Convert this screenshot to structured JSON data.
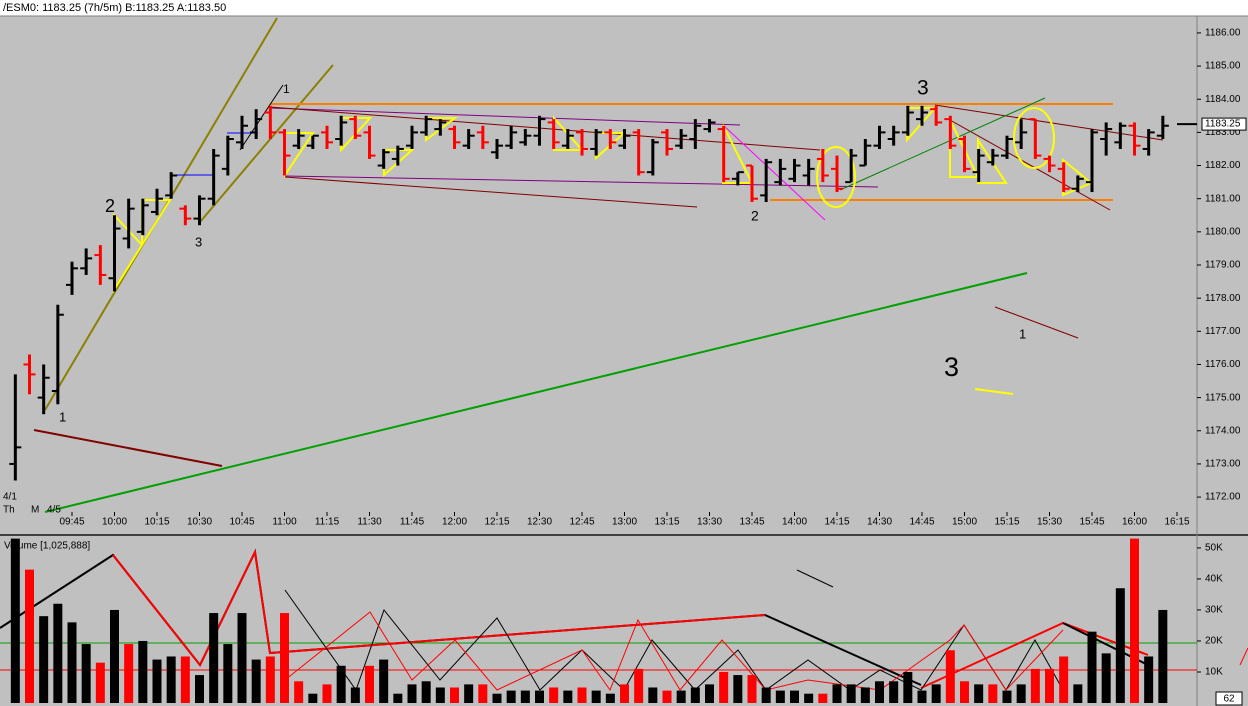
{
  "header": "/ESM0: 1183.25 (7h/5m)  B:1183.25  A:1183.50",
  "chart_data": [
    {
      "type": "ohlc",
      "x": [
        "09:25",
        "09:30",
        "09:35",
        "09:40",
        "09:45",
        "09:50",
        "09:55",
        "10:00",
        "10:05",
        "10:10",
        "10:15",
        "10:20",
        "10:25",
        "10:30",
        "10:35",
        "10:40",
        "10:45",
        "10:50",
        "10:55",
        "11:00",
        "11:05",
        "11:10",
        "11:15",
        "11:20",
        "11:25",
        "11:30",
        "11:35",
        "11:40",
        "11:45",
        "11:50",
        "11:55",
        "12:00",
        "12:05",
        "12:10",
        "12:15",
        "12:20",
        "12:25",
        "12:30",
        "12:35",
        "12:40",
        "12:45",
        "12:50",
        "12:55",
        "13:00",
        "13:05",
        "13:10",
        "13:15",
        "13:20",
        "13:25",
        "13:30",
        "13:35",
        "13:40",
        "13:45",
        "13:50",
        "13:55",
        "14:00",
        "14:05",
        "14:10",
        "14:15",
        "14:20",
        "14:25",
        "14:30",
        "14:35",
        "14:40",
        "14:45",
        "14:50",
        "14:55",
        "15:00",
        "15:05",
        "15:10",
        "15:15",
        "15:20",
        "15:25",
        "15:30",
        "15:35",
        "15:40",
        "15:45",
        "15:50",
        "15:55",
        "16:00",
        "16:05",
        "16:10"
      ],
      "open": [
        1173.0,
        1176.0,
        1175.0,
        1175.2,
        1178.4,
        1178.9,
        1179.3,
        1178.6,
        1179.8,
        1180.0,
        1180.6,
        1181.1,
        1180.7,
        1180.4,
        1181.0,
        1181.9,
        1182.7,
        1183.0,
        1183.6,
        1183.0,
        1182.6,
        1182.6,
        1183.0,
        1182.8,
        1183.4,
        1183.0,
        1182.0,
        1182.2,
        1182.6,
        1183.0,
        1183.1,
        1183.1,
        1182.6,
        1183.0,
        1182.4,
        1182.6,
        1182.7,
        1182.9,
        1183.3,
        1182.6,
        1183.0,
        1182.5,
        1183.0,
        1182.6,
        1183.0,
        1181.8,
        1183.0,
        1182.6,
        1182.8,
        1183.1,
        1183.1,
        1181.6,
        1182.0,
        1181.1,
        1181.5,
        1181.6,
        1181.7,
        1182.2,
        1181.9,
        1181.5,
        1182.0,
        1182.6,
        1182.8,
        1183.0,
        1183.4,
        1183.7,
        1183.4,
        1182.8,
        1181.8,
        1182.1,
        1182.3,
        1182.7,
        1183.4,
        1182.2,
        1181.9,
        1181.3,
        1181.5,
        1182.8,
        1182.7,
        1183.2,
        1182.5,
        1182.9
      ],
      "high": [
        1175.7,
        1176.3,
        1176.0,
        1177.8,
        1179.1,
        1179.5,
        1179.6,
        1180.5,
        1181.0,
        1181.0,
        1181.3,
        1181.8,
        1180.8,
        1181.1,
        1182.5,
        1182.9,
        1183.5,
        1183.7,
        1183.8,
        1183.1,
        1183.1,
        1182.9,
        1183.2,
        1183.5,
        1183.5,
        1183.2,
        1182.5,
        1182.6,
        1183.2,
        1183.5,
        1183.4,
        1183.2,
        1183.1,
        1183.2,
        1182.8,
        1183.2,
        1183.1,
        1183.5,
        1183.4,
        1183.1,
        1183.1,
        1183.1,
        1183.1,
        1183.1,
        1183.1,
        1182.8,
        1183.1,
        1183.1,
        1183.4,
        1183.4,
        1183.2,
        1181.8,
        1182.0,
        1182.2,
        1182.2,
        1182.2,
        1182.2,
        1182.5,
        1182.3,
        1182.5,
        1182.8,
        1183.2,
        1183.2,
        1183.8,
        1183.8,
        1183.8,
        1183.5,
        1182.9,
        1182.5,
        1182.5,
        1182.9,
        1183.4,
        1183.4,
        1182.3,
        1182.1,
        1181.7,
        1183.1,
        1183.3,
        1183.3,
        1183.3,
        1183.1,
        1183.5
      ],
      "low": [
        1172.5,
        1175.1,
        1174.5,
        1174.8,
        1178.1,
        1178.7,
        1178.4,
        1178.2,
        1179.5,
        1179.9,
        1180.5,
        1181.0,
        1180.2,
        1180.2,
        1180.8,
        1181.7,
        1182.5,
        1182.8,
        1182.8,
        1181.7,
        1182.5,
        1182.5,
        1182.5,
        1182.6,
        1182.8,
        1182.2,
        1181.9,
        1182.0,
        1182.5,
        1182.9,
        1182.9,
        1182.5,
        1182.5,
        1182.5,
        1182.2,
        1182.5,
        1182.6,
        1182.6,
        1182.5,
        1182.5,
        1182.3,
        1182.3,
        1182.5,
        1182.5,
        1181.7,
        1181.7,
        1182.3,
        1182.5,
        1182.5,
        1183.0,
        1181.5,
        1181.4,
        1180.9,
        1180.9,
        1181.4,
        1181.5,
        1181.4,
        1181.5,
        1181.2,
        1181.5,
        1182.0,
        1182.5,
        1182.6,
        1182.9,
        1183.2,
        1183.2,
        1182.5,
        1181.8,
        1181.5,
        1182.0,
        1182.2,
        1182.5,
        1182.2,
        1181.8,
        1181.2,
        1181.2,
        1181.2,
        1182.3,
        1182.5,
        1182.3,
        1182.3,
        1182.8
      ],
      "close": [
        1173.5,
        1175.7,
        1175.6,
        1177.5,
        1178.9,
        1179.2,
        1178.7,
        1180.1,
        1180.7,
        1180.8,
        1181.0,
        1181.7,
        1180.4,
        1181.0,
        1182.3,
        1182.8,
        1183.2,
        1183.4,
        1183.0,
        1182.3,
        1182.9,
        1182.9,
        1182.7,
        1183.3,
        1182.9,
        1182.3,
        1182.4,
        1182.5,
        1183.0,
        1183.4,
        1183.3,
        1182.7,
        1182.9,
        1182.7,
        1182.6,
        1183.0,
        1182.9,
        1183.4,
        1182.7,
        1182.9,
        1182.5,
        1183.0,
        1182.7,
        1182.9,
        1181.8,
        1182.7,
        1182.5,
        1182.9,
        1183.2,
        1183.3,
        1181.6,
        1181.8,
        1181.0,
        1182.1,
        1181.9,
        1182.0,
        1181.9,
        1181.7,
        1181.3,
        1182.3,
        1182.6,
        1183.0,
        1183.0,
        1183.6,
        1183.6,
        1183.3,
        1182.6,
        1181.9,
        1182.3,
        1182.3,
        1182.8,
        1183.0,
        1182.3,
        1182.0,
        1181.3,
        1181.6,
        1183.0,
        1183.1,
        1183.2,
        1182.6,
        1183.0,
        1183.2
      ],
      "up_color": "#000000",
      "down_color": "#ff0000",
      "ylim": [
        1171.55,
        1186.45
      ],
      "yticks": [
        {
          "value": 1172,
          "label": "1172.00"
        },
        {
          "value": 1173,
          "label": "1173.00"
        },
        {
          "value": 1174,
          "label": "1174.00"
        },
        {
          "value": 1175,
          "label": "1175.00"
        },
        {
          "value": 1176,
          "label": "1176.00"
        },
        {
          "value": 1177,
          "label": "1177.00"
        },
        {
          "value": 1178,
          "label": "1178.00"
        },
        {
          "value": 1179,
          "label": "1179.00"
        },
        {
          "value": 1180,
          "label": "1180.00"
        },
        {
          "value": 1181,
          "label": "1181.00"
        },
        {
          "value": 1182,
          "label": "1182.00"
        },
        {
          "value": 1183,
          "label": "1183.00"
        },
        {
          "value": 1184,
          "label": "1184.00"
        },
        {
          "value": 1185,
          "label": "1185.00"
        },
        {
          "value": 1186,
          "label": "1186.00"
        }
      ],
      "xticks": [
        "09:45",
        "10:00",
        "10:15",
        "10:30",
        "10:45",
        "11:00",
        "11:15",
        "11:30",
        "11:45",
        "12:00",
        "12:15",
        "12:30",
        "12:45",
        "13:00",
        "13:15",
        "13:30",
        "13:45",
        "14:00",
        "14:15",
        "14:30",
        "14:45",
        "15:00",
        "15:15",
        "15:30",
        "15:45",
        "16:00",
        "16:15"
      ],
      "last_price": 1183.25,
      "date_labels": [
        "4/1",
        "Th",
        "M",
        "4/5"
      ],
      "annotations": [
        "2",
        "3",
        "1",
        "1",
        "2",
        "3",
        "1",
        "3"
      ]
    },
    {
      "type": "bar",
      "title": "Volume [1,025,888]",
      "values": [
        53000,
        43000,
        28000,
        32000,
        26000,
        19000,
        13000,
        30000,
        19000,
        20000,
        14000,
        15000,
        15000,
        9000,
        29000,
        19000,
        29000,
        14000,
        15000,
        29000,
        7000,
        3000,
        6000,
        12000,
        5000,
        12000,
        14000,
        3000,
        6000,
        7000,
        5000,
        5000,
        6000,
        6000,
        3000,
        4000,
        4000,
        4000,
        5000,
        4000,
        5000,
        4000,
        3000,
        6000,
        11000,
        5000,
        4000,
        4000,
        5000,
        6000,
        10000,
        9000,
        9000,
        5000,
        4000,
        4000,
        3000,
        3000,
        6000,
        6000,
        5000,
        7000,
        7000,
        10000,
        4000,
        6000,
        17000,
        7000,
        6000,
        6000,
        4000,
        6000,
        11000,
        11000,
        15000,
        6000,
        23000,
        16000,
        37000,
        53000,
        15000,
        30000
      ],
      "colors": [
        "#000000",
        "#ff0000",
        "#000000",
        "#000000",
        "#000000",
        "#000000",
        "#ff0000",
        "#000000",
        "#ff0000",
        "#000000",
        "#000000",
        "#000000",
        "#ff0000",
        "#000000",
        "#000000",
        "#000000",
        "#000000",
        "#000000",
        "#ff0000",
        "#ff0000",
        "#ff0000",
        "#000000",
        "#ff0000",
        "#000000",
        "#000000",
        "#ff0000",
        "#000000",
        "#000000",
        "#000000",
        "#000000",
        "#000000",
        "#ff0000",
        "#000000",
        "#ff0000",
        "#000000",
        "#000000",
        "#000000",
        "#000000",
        "#ff0000",
        "#000000",
        "#ff0000",
        "#000000",
        "#000000",
        "#ff0000",
        "#ff0000",
        "#000000",
        "#ff0000",
        "#000000",
        "#000000",
        "#000000",
        "#ff0000",
        "#000000",
        "#ff0000",
        "#000000",
        "#000000",
        "#000000",
        "#000000",
        "#ff0000",
        "#000000",
        "#000000",
        "#000000",
        "#000000",
        "#000000",
        "#000000",
        "#000000",
        "#000000",
        "#ff0000",
        "#ff0000",
        "#000000",
        "#ff0000",
        "#000000",
        "#000000",
        "#ff0000",
        "#ff0000",
        "#ff0000",
        "#000000",
        "#000000",
        "#000000",
        "#000000",
        "#ff0000",
        "#000000",
        "#000000"
      ],
      "ylim": [
        0,
        53200
      ],
      "yticks": [
        {
          "value": 10000,
          "label": "10K"
        },
        {
          "value": 20000,
          "label": "20K"
        },
        {
          "value": 30000,
          "label": "30K"
        },
        {
          "value": 40000,
          "label": "40K"
        },
        {
          "value": 50000,
          "label": "50K"
        }
      ],
      "corner_label": "62"
    }
  ]
}
